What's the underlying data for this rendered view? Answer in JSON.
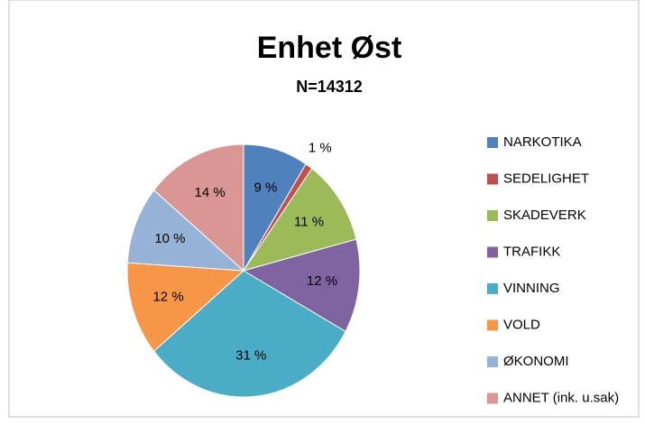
{
  "chart_data": {
    "type": "pie",
    "title": "Enhet Øst",
    "subtitle": "N=14312",
    "categories": [
      "NARKOTIKA",
      "SEDELIGHET",
      "SKADEVERK",
      "TRAFIKK",
      "VINNING",
      "VOLD",
      "ØKONOMI",
      "ANNET (ink. u.sak)"
    ],
    "values": [
      9,
      1,
      11,
      12,
      31,
      12,
      10,
      14
    ],
    "value_labels": [
      "9 %",
      "1 %",
      "11 %",
      "12 %",
      "31 %",
      "12 %",
      "10 %",
      "14 %"
    ],
    "colors": [
      "#4f81bd",
      "#c0504d",
      "#9bbb59",
      "#8064a2",
      "#4bacc6",
      "#f79646",
      "#95b3d7",
      "#d99694"
    ],
    "legend": "right"
  }
}
